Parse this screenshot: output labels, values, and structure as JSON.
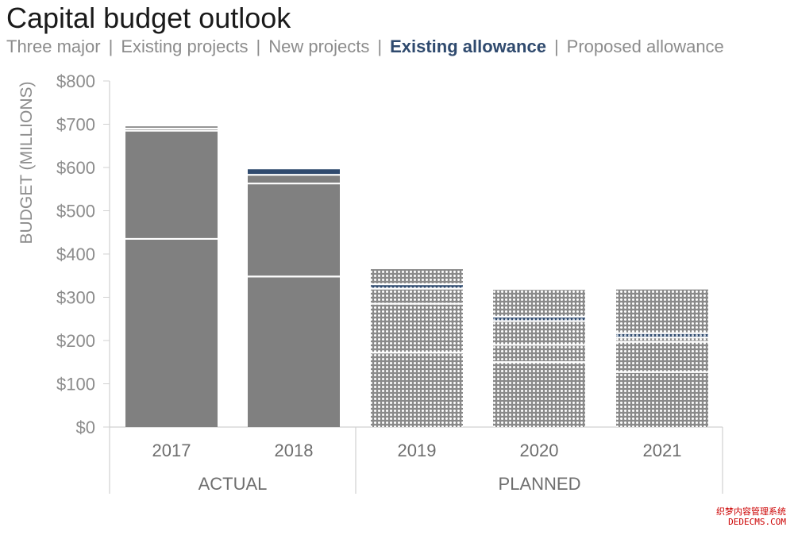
{
  "title": "Capital budget outlook",
  "legend": [
    {
      "label": "Three major",
      "active": false
    },
    {
      "label": "Existing projects",
      "active": false
    },
    {
      "label": "New projects",
      "active": false
    },
    {
      "label": "Existing allowance",
      "active": true
    },
    {
      "label": "Proposed allowance",
      "active": false
    }
  ],
  "colors": {
    "bar": "#808080",
    "highlight": "#2f4a6e",
    "divider": "#ffffff",
    "axis_text": "#8c8c8c",
    "pattern_bg": "#ffffff",
    "pattern_dot": "#8a8a8a"
  },
  "chart_data": {
    "type": "bar",
    "stacked": true,
    "categories": [
      "2017",
      "2018",
      "2019",
      "2020",
      "2021"
    ],
    "groups": [
      {
        "label": "ACTUAL",
        "categories": [
          "2017",
          "2018"
        ],
        "style": "solid"
      },
      {
        "label": "PLANNED",
        "categories": [
          "2019",
          "2020",
          "2021"
        ],
        "style": "patterned"
      }
    ],
    "series": [
      {
        "name": "Three major",
        "values": [
          435,
          348,
          172,
          150,
          127
        ]
      },
      {
        "name": "Existing projects",
        "values": [
          250,
          215,
          113,
          40,
          70
        ]
      },
      {
        "name": "New projects",
        "values": [
          5,
          20,
          35,
          55,
          10
        ]
      },
      {
        "name": "Existing allowance",
        "values": [
          0,
          15,
          10,
          10,
          10
        ]
      },
      {
        "name": "Proposed allowance",
        "values": [
          5,
          2,
          35,
          62,
          101
        ]
      }
    ],
    "ylabel": "BUDGET (MILLIONS)",
    "ylim": [
      0,
      800
    ],
    "yticks": [
      0,
      100,
      200,
      300,
      400,
      500,
      600,
      700,
      800
    ],
    "ytick_labels": [
      "$0",
      "$100",
      "$200",
      "$300",
      "$400",
      "$500",
      "$600",
      "$700",
      "$800"
    ],
    "highlight_series": "Existing allowance",
    "grid": false
  },
  "watermark": {
    "line1": "织梦内容管理系统",
    "line2": "DEDECMS.COM"
  }
}
